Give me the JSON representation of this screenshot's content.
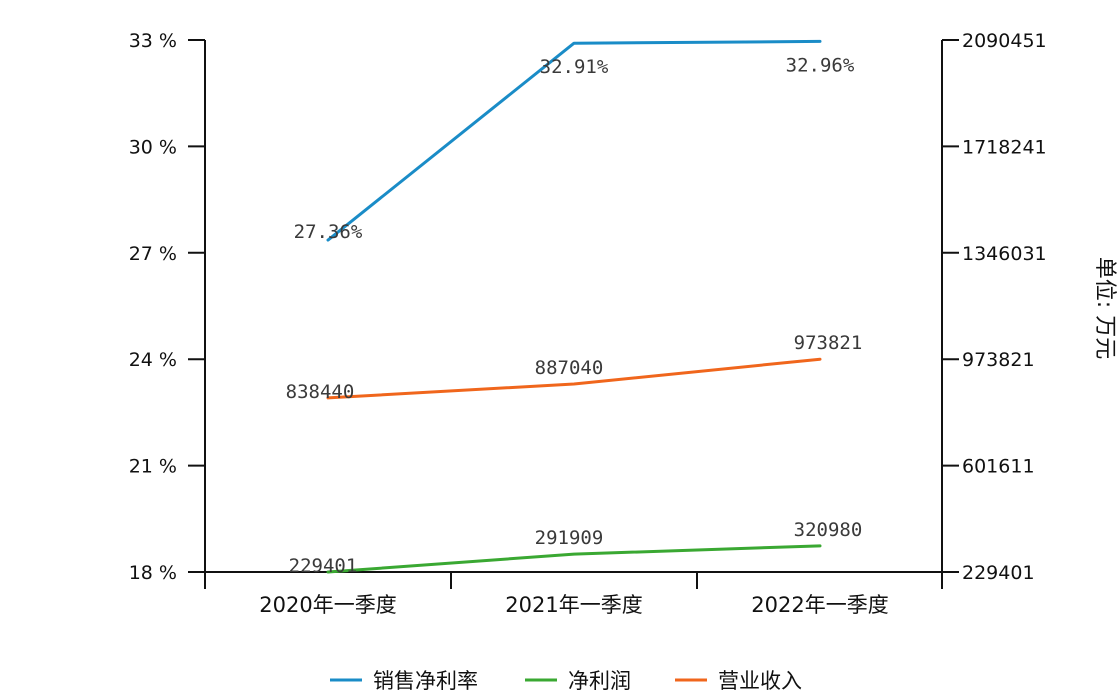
{
  "chart_data": {
    "type": "line",
    "categories": [
      "2020年一季度",
      "2021年一季度",
      "2022年一季度"
    ],
    "y_left": {
      "ticks": [
        "18 %",
        "21 %",
        "24 %",
        "27 %",
        "30 %",
        "33 %"
      ],
      "range": [
        18,
        33
      ]
    },
    "y_right": {
      "ticks": [
        "229401",
        "601611",
        "973821",
        "1346031",
        "1718241",
        "2090451"
      ],
      "range": [
        229401,
        2090451
      ],
      "label": "单位: 万元"
    },
    "series": [
      {
        "name": "销售净利率",
        "color": "#1a8cc7",
        "axis": "left",
        "values": [
          27.36,
          32.91,
          32.96
        ],
        "labels": [
          "27.36%",
          "32.91%",
          "32.96%"
        ]
      },
      {
        "name": "净利润",
        "color": "#3aa832",
        "axis": "right",
        "values": [
          229401,
          291909,
          320980
        ],
        "labels": [
          "229401",
          "291909",
          "320980"
        ]
      },
      {
        "name": "营业收入",
        "color": "#f0661c",
        "axis": "right",
        "values": [
          838440,
          887040,
          973821
        ],
        "labels": [
          "838440",
          "887040",
          "973821"
        ]
      }
    ],
    "grid": false,
    "legend": "bottom"
  }
}
